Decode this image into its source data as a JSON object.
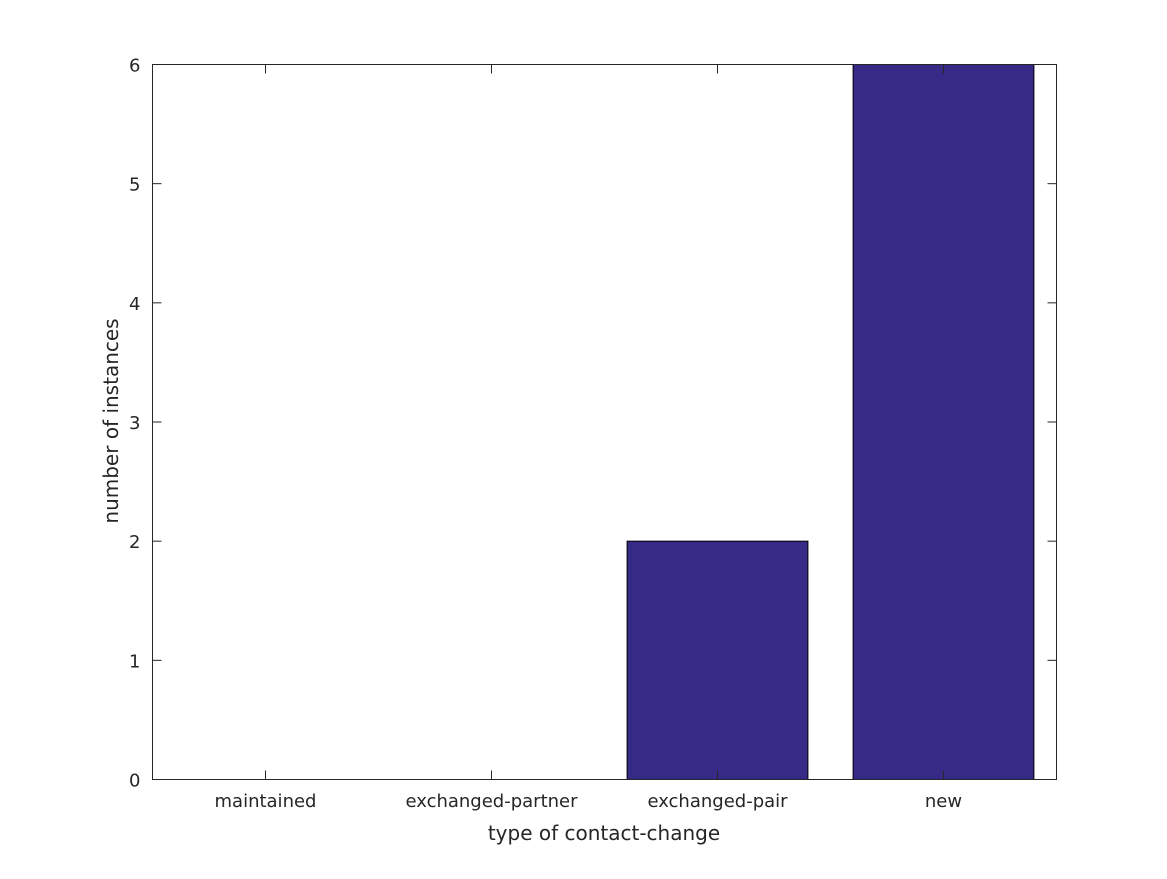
{
  "chart_data": {
    "type": "bar",
    "title": "",
    "xlabel": "type of contact-change",
    "ylabel": "number of instances",
    "categories": [
      "maintained",
      "exchanged-partner",
      "exchanged-pair",
      "new"
    ],
    "values": [
      0,
      0,
      2,
      6
    ],
    "ylim": [
      0,
      6
    ],
    "yticks": [
      0,
      1,
      2,
      3,
      4,
      5,
      6
    ],
    "grid": false,
    "bar_color": "#352a85",
    "edge_color": "#000000"
  }
}
